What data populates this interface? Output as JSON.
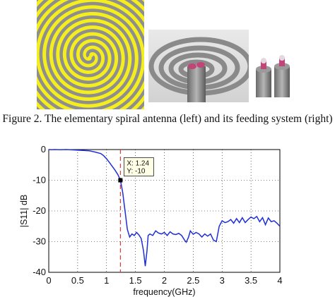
{
  "caption": "Figure 2. The elementary spiral antenna (left) and its feeding system (right)",
  "colors": {
    "spiral_bg": "#F5EE1E",
    "spiral_arm": "#8E8E8E",
    "trace": "#1f2fd6",
    "marker_line": "#e03a3a"
  },
  "datatip": {
    "x_text": "X: 1.24",
    "y_text": "Y: -10"
  },
  "chart_data": {
    "type": "line",
    "xlabel": "frequency(GHz)",
    "ylabel": "|S11| dB",
    "xlim": [
      0,
      4
    ],
    "ylim": [
      -40,
      0
    ],
    "xticks": [
      "0",
      "0.5",
      "1",
      "1.5",
      "2",
      "2.5",
      "3",
      "3.5",
      "4"
    ],
    "yticks": [
      "0",
      "-10",
      "-20",
      "-30",
      "-40"
    ],
    "grid": true,
    "series": [
      {
        "x": [
          0,
          0.05,
          0.1,
          0.2,
          0.3,
          0.4,
          0.5,
          0.6,
          0.7,
          0.8,
          0.9,
          0.95,
          1.0,
          1.05,
          1.1,
          1.15,
          1.2,
          1.24,
          1.28,
          1.32,
          1.36,
          1.4,
          1.44,
          1.48,
          1.52,
          1.56,
          1.6,
          1.64,
          1.67,
          1.7,
          1.72,
          1.75,
          1.8,
          1.85,
          1.9,
          1.95,
          2.0,
          2.05,
          2.1,
          2.15,
          2.2,
          2.25,
          2.3,
          2.35,
          2.38,
          2.42,
          2.45,
          2.5,
          2.55,
          2.6,
          2.65,
          2.7,
          2.75,
          2.8,
          2.85,
          2.9,
          2.95,
          3.0,
          3.05,
          3.1,
          3.15,
          3.2,
          3.25,
          3.3,
          3.35,
          3.4,
          3.45,
          3.5,
          3.55,
          3.6,
          3.65,
          3.7,
          3.75,
          3.8,
          3.85,
          3.9,
          3.95,
          4.0
        ],
        "y": [
          0,
          -0.05,
          0,
          -0.05,
          0,
          -0.1,
          -0.2,
          -0.3,
          -0.4,
          -0.8,
          -1.3,
          -2.0,
          -3.0,
          -4.2,
          -5.5,
          -6.8,
          -8.3,
          -10,
          -14,
          -20,
          -26,
          -28.5,
          -27.5,
          -28,
          -27,
          -27.8,
          -29,
          -33,
          -38,
          -33,
          -28,
          -27.5,
          -28,
          -26.5,
          -27.2,
          -27.5,
          -27,
          -28,
          -26.8,
          -27.5,
          -27.7,
          -27.3,
          -28,
          -29.5,
          -30.2,
          -28.5,
          -26.5,
          -27.6,
          -27,
          -27.5,
          -28.5,
          -27.5,
          -28.2,
          -27.5,
          -29.5,
          -30,
          -25,
          -23.2,
          -23.8,
          -23.5,
          -22.8,
          -24,
          -22.5,
          -23.8,
          -22.2,
          -23.8,
          -22.8,
          -22,
          -22.5,
          -21.8,
          -23.5,
          -22.2,
          -24.5,
          -22.3,
          -23.5,
          -23.2,
          -24,
          -25
        ]
      }
    ],
    "marker": {
      "x": 1.24,
      "y": -10
    }
  }
}
